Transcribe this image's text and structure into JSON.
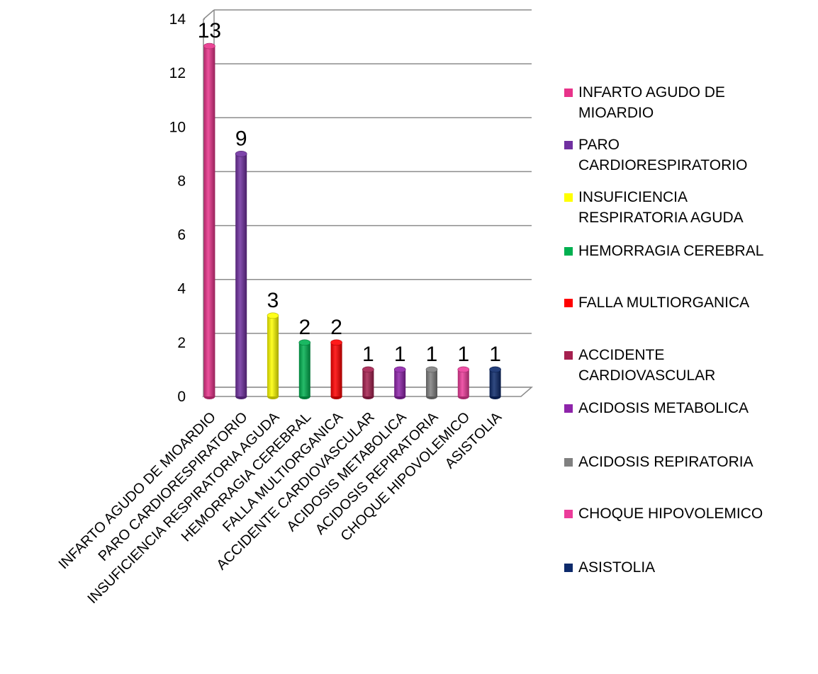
{
  "chart_data": {
    "type": "bar",
    "title": "",
    "xlabel": "",
    "ylabel": "",
    "ylim": [
      0,
      14
    ],
    "yticks": [
      0,
      2,
      4,
      6,
      8,
      10,
      12,
      14
    ],
    "grid": true,
    "legend_position": "right",
    "categories": [
      "INFARTO AGUDO DE MIOARDIO",
      "PARO CARDIORESPIRATORIO",
      "INSUFICIENCIA RESPIRATORIA AGUDA",
      "HEMORRAGIA CEREBRAL",
      "FALLA MULTIORGANICA",
      "ACCIDENTE CARDIOVASCULAR",
      "ACIDOSIS METABOLICA",
      "ACIDOSIS REPIRATORIA",
      "CHOQUE HIPOVOLEMICO",
      "ASISTOLIA"
    ],
    "values": [
      13,
      9,
      3,
      2,
      2,
      1,
      1,
      1,
      1,
      1
    ],
    "colors": [
      "#E8338A",
      "#7030A0",
      "#FFFF00",
      "#00B050",
      "#FF0000",
      "#A5204F",
      "#8E24AA",
      "#808080",
      "#EC3C9A",
      "#0D2A6B"
    ],
    "legend": [
      {
        "line1": "INFARTO AGUDO DE",
        "line2": "MIOARDIO"
      },
      {
        "line1": "PARO",
        "line2": "CARDIORESPIRATORIO"
      },
      {
        "line1": "INSUFICIENCIA",
        "line2": "RESPIRATORIA AGUDA"
      },
      {
        "line1": "HEMORRAGIA CEREBRAL",
        "line2": ""
      },
      {
        "line1": "FALLA MULTIORGANICA",
        "line2": ""
      },
      {
        "line1": "ACCIDENTE",
        "line2": "CARDIOVASCULAR"
      },
      {
        "line1": "ACIDOSIS METABOLICA",
        "line2": ""
      },
      {
        "line1": "ACIDOSIS REPIRATORIA",
        "line2": ""
      },
      {
        "line1": "CHOQUE HIPOVOLEMICO",
        "line2": ""
      },
      {
        "line1": "ASISTOLIA",
        "line2": ""
      }
    ]
  }
}
